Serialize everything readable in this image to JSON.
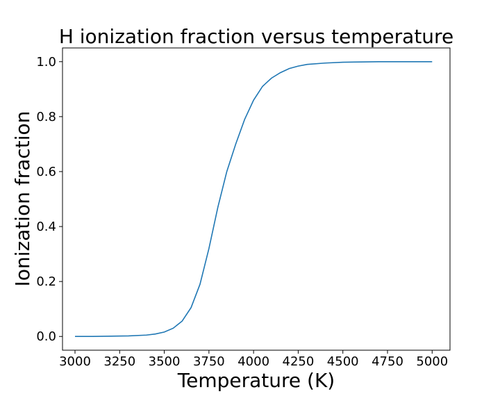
{
  "chart_data": {
    "type": "line",
    "title": "H ionization fraction versus temperature",
    "xlabel": "Temperature (K)",
    "ylabel": "Ionization fraction",
    "xlim": [
      2930,
      5100
    ],
    "ylim": [
      -0.05,
      1.05
    ],
    "xticks": [
      3000,
      3250,
      3500,
      3750,
      4000,
      4250,
      4500,
      4750,
      5000
    ],
    "yticks": [
      0.0,
      0.2,
      0.4,
      0.6,
      0.8,
      1.0
    ],
    "xtick_labels": [
      "3000",
      "3250",
      "3500",
      "3750",
      "4000",
      "4250",
      "4500",
      "4750",
      "5000"
    ],
    "ytick_labels": [
      "0.0",
      "0.2",
      "0.4",
      "0.6",
      "0.8",
      "1.0"
    ],
    "grid": false,
    "line_color": "#1f77b4",
    "series": [
      {
        "x": [
          3000,
          3100,
          3200,
          3300,
          3400,
          3450,
          3500,
          3550,
          3600,
          3650,
          3700,
          3750,
          3800,
          3850,
          3900,
          3950,
          4000,
          4050,
          4100,
          4150,
          4200,
          4250,
          4300,
          4400,
          4500,
          4600,
          4700,
          4800,
          4900,
          5000
        ],
        "y": [
          0.0,
          0.0,
          0.001,
          0.002,
          0.005,
          0.009,
          0.016,
          0.03,
          0.056,
          0.105,
          0.19,
          0.32,
          0.47,
          0.6,
          0.7,
          0.79,
          0.86,
          0.91,
          0.94,
          0.96,
          0.975,
          0.984,
          0.99,
          0.995,
          0.998,
          0.999,
          1.0,
          1.0,
          1.0,
          1.0
        ]
      }
    ]
  }
}
